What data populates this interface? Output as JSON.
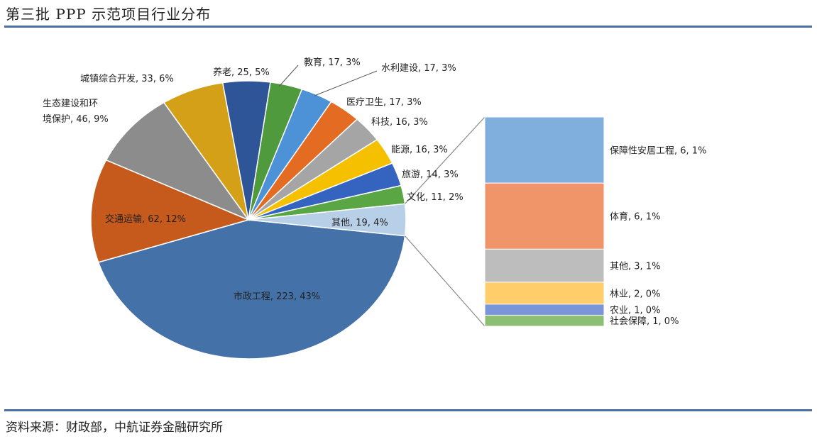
{
  "title": "第三批 PPP 示范项目行业分布",
  "source": "资料来源：财政部，中航证券金融研究所",
  "chart_data": {
    "type": "pie",
    "title": "第三批 PPP 示范项目行业分布",
    "slices": [
      {
        "label": "市政工程",
        "count": 223,
        "percent": "43%",
        "color": "#4472a8"
      },
      {
        "label": "交通运输",
        "count": 62,
        "percent": "12%",
        "color": "#c55a1c"
      },
      {
        "label": "生态建设和环境保护",
        "count": 46,
        "percent": "9%",
        "color": "#8c8c8c"
      },
      {
        "label": "城镇综合开发",
        "count": 33,
        "percent": "6%",
        "color": "#d4a017"
      },
      {
        "label": "养老",
        "count": 25,
        "percent": "5%",
        "color": "#2e5597"
      },
      {
        "label": "教育",
        "count": 17,
        "percent": "3%",
        "color": "#4f9a3c"
      },
      {
        "label": "水利建设",
        "count": 17,
        "percent": "3%",
        "color": "#4d92d6"
      },
      {
        "label": "医疗卫生",
        "count": 17,
        "percent": "3%",
        "color": "#e36c22"
      },
      {
        "label": "科技",
        "count": 16,
        "percent": "3%",
        "color": "#a5a5a5"
      },
      {
        "label": "能源",
        "count": 16,
        "percent": "3%",
        "color": "#f5c000"
      },
      {
        "label": "旅游",
        "count": 14,
        "percent": "3%",
        "color": "#3464c0"
      },
      {
        "label": "文化",
        "count": 11,
        "percent": "2%",
        "color": "#5aa544"
      },
      {
        "label": "其他",
        "count": 19,
        "percent": "4%",
        "color": "#b8cfe8"
      }
    ],
    "breakdown_of": "其他",
    "breakdown": [
      {
        "label": "保障性安居工程",
        "count": 6,
        "percent": "1%",
        "color": "#80aedd"
      },
      {
        "label": "体育",
        "count": 6,
        "percent": "1%",
        "color": "#f0956a"
      },
      {
        "label": "其他",
        "count": 3,
        "percent": "1%",
        "color": "#bdbdbd"
      },
      {
        "label": "林业",
        "count": 2,
        "percent": "0%",
        "color": "#ffcd6a"
      },
      {
        "label": "农业",
        "count": 1,
        "percent": "0%",
        "color": "#7a96d8"
      },
      {
        "label": "社会保障",
        "count": 1,
        "percent": "0%",
        "color": "#8cbf74"
      }
    ]
  }
}
